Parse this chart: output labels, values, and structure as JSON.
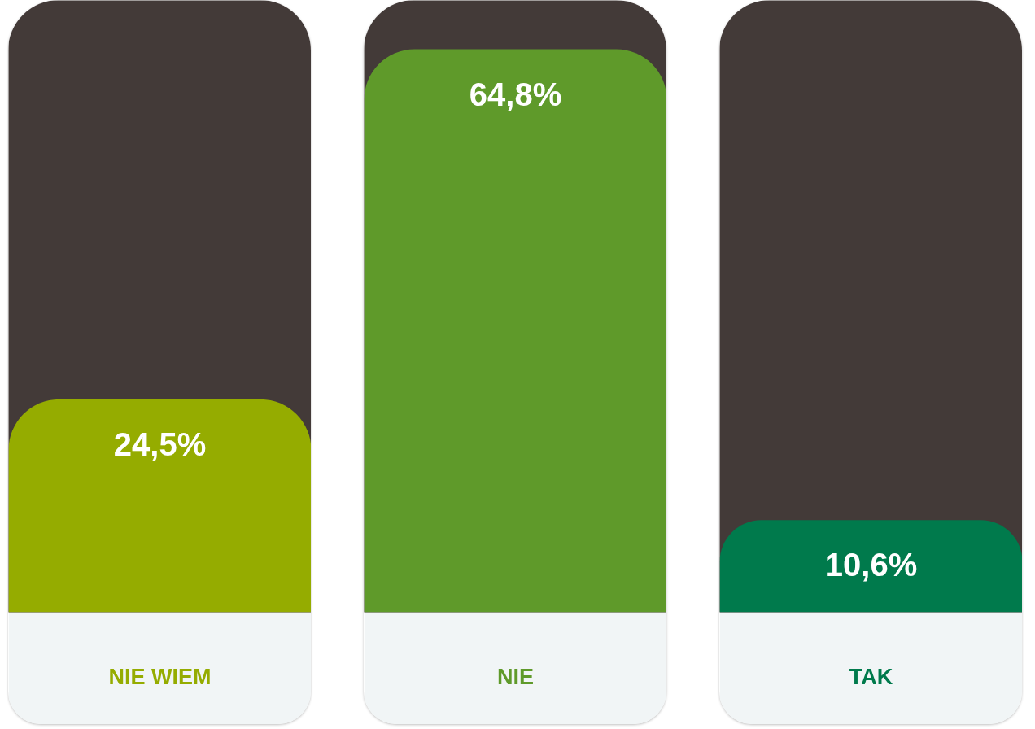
{
  "chart_data": {
    "type": "bar",
    "categories": [
      "NIE WIEM",
      "NIE",
      "TAK"
    ],
    "values": [
      24.5,
      64.8,
      10.6
    ],
    "colors": [
      "#95ac00",
      "#5f9a2a",
      "#007a4c"
    ],
    "value_labels": [
      "24,5%",
      "64,8%",
      "10,6%"
    ]
  }
}
